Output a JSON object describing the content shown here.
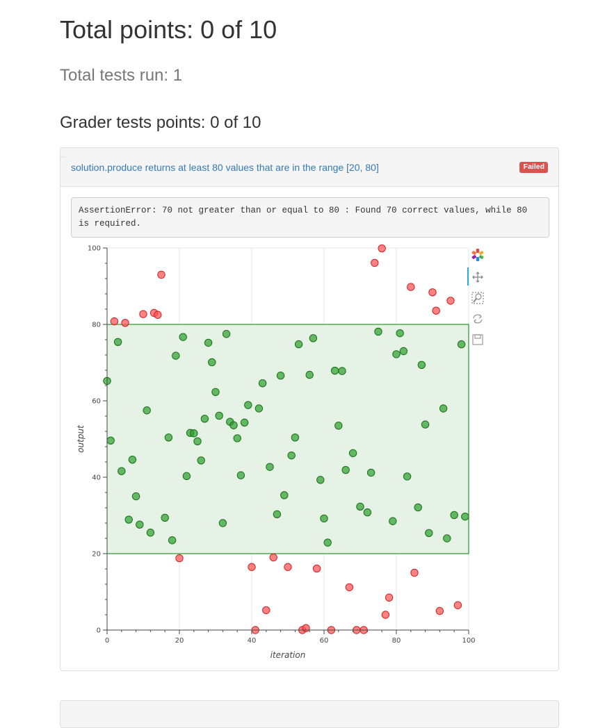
{
  "header": {
    "total_points": "Total points: 0 of 10",
    "total_tests": "Total tests run: 1",
    "grader_points": "Grader tests points: 0 of 10"
  },
  "test": {
    "name": "solution.produce returns at least 80 values that are in the range [20, 80]",
    "status": "Failed",
    "error": "AssertionError: 70 not greater than or equal to 80 : Found 70 correct values, while 80 is required."
  },
  "toolbar": {
    "tools": [
      "bokeh-logo-icon",
      "pan-icon",
      "box-zoom-icon",
      "reset-icon",
      "save-icon"
    ]
  },
  "colors": {
    "in_range": "#2ca02c",
    "out_of_range": "#ff4d4d",
    "band_fill": "#e5f2e5",
    "band_border": "#008000",
    "link": "#337ab7",
    "failed_badge": "#d9534f"
  },
  "chart_data": {
    "type": "scatter",
    "xlabel": "iteration",
    "ylabel": "output",
    "xlim": [
      0,
      100
    ],
    "ylim": [
      0,
      100
    ],
    "xticks": [
      0,
      20,
      40,
      60,
      80,
      100
    ],
    "yticks": [
      0,
      20,
      40,
      60,
      80,
      100
    ],
    "grid": true,
    "band": [
      20,
      80
    ],
    "series": [
      {
        "color": "green",
        "x": [
          0,
          1,
          3,
          4,
          6,
          7,
          8,
          9,
          11,
          12,
          16,
          17,
          18,
          19,
          21,
          22,
          23,
          24,
          25,
          26,
          27,
          28,
          29,
          30,
          31,
          32,
          33,
          34,
          35,
          36,
          37,
          38,
          39,
          42,
          43,
          45,
          47,
          48,
          49,
          51,
          52,
          53,
          56,
          57,
          59,
          60,
          61,
          63,
          64,
          65,
          66,
          68,
          70,
          72,
          73,
          75,
          79,
          80,
          81,
          82,
          83,
          86,
          87,
          88,
          89,
          93,
          94,
          96,
          98,
          99
        ],
        "y": [
          65.2,
          49.6,
          75.4,
          41.6,
          28.9,
          44.6,
          35,
          27.6,
          57.5,
          25.5,
          29.4,
          50.4,
          23.5,
          71.8,
          76.7,
          40.3,
          51.6,
          51.5,
          49.4,
          44.4,
          55.3,
          75.2,
          70.1,
          62.3,
          56.1,
          28,
          77.5,
          54.5,
          53.6,
          50.2,
          40.5,
          54.3,
          58.9,
          58,
          64.6,
          42.7,
          30.3,
          66.6,
          35.3,
          45.7,
          50.4,
          74.8,
          66.8,
          76.4,
          39.3,
          29.2,
          22.9,
          67.9,
          53.5,
          67.8,
          41.9,
          46.3,
          32.3,
          30.8,
          41.2,
          78.1,
          28.5,
          72.2,
          77.7,
          73,
          40.2,
          32.1,
          69.4,
          53.8,
          25.4,
          58,
          24,
          30.1,
          74.8,
          29.7
        ]
      },
      {
        "color": "red",
        "x": [
          2,
          5,
          10,
          13,
          14,
          15,
          20,
          40,
          41,
          44,
          46,
          50,
          54,
          55,
          58,
          62,
          67,
          69,
          71,
          74,
          76,
          77,
          78,
          84,
          85,
          90,
          91,
          92,
          95,
          97
        ],
        "y": [
          80.8,
          80.4,
          82.7,
          83,
          82.5,
          93,
          18.8,
          16.5,
          0,
          5.2,
          19,
          16.5,
          0,
          0.5,
          16.1,
          0,
          11.2,
          0,
          0,
          96.1,
          99.9,
          4,
          8.5,
          89.8,
          15,
          88.4,
          83.6,
          5,
          86.2,
          6.5
        ]
      }
    ]
  }
}
